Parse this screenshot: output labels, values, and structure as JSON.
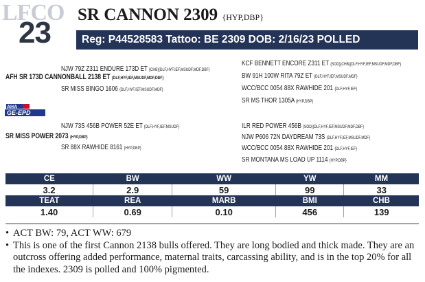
{
  "lot": {
    "number": "23",
    "logo_text": "LFCO"
  },
  "animal": {
    "name": "SR CANNON 2309",
    "tags": "{HYP,DBP}",
    "reg_line": "Reg: P44528583   Tattoo: BE 2309   DOB: 2/16/23   POLLED"
  },
  "pedigree": {
    "sire_sire": {
      "name": "NJW 79Z Z311 ENDURE 173D ET",
      "tags": "{CHB}{DLF,HYF,IEF,MSUDF,MDF,DBF}"
    },
    "sire": {
      "name": "AFH SR 173D CANNONBALL 2138 ET",
      "tags": "{DLF,HYF,IEF,MSUDF,MDF,DBF}"
    },
    "sire_dam": {
      "name": "SR MISS BINGO 1606",
      "tags": "{DLF,HYF,IEF,MSUDF,MDF}"
    },
    "sss": {
      "name": "KCF BENNETT ENCORE Z311 ET",
      "tags": "{SOD}{CHB}{DLF,HYF,IEF,MSUDF,MDF,DBF}"
    },
    "ssd": {
      "name": "BW 91H 100W RITA 79Z ET",
      "tags": "{DLF,HYF,IEF,MSUDF,MDF}"
    },
    "sds": {
      "name": "WCC/BCC 0054 88X RAWHIDE 201",
      "tags": "{DLF,HYF,IEF}"
    },
    "sdd": {
      "name": "SR MS THOR 1305A",
      "tags": "{HYP,DBP}"
    },
    "dam_sire": {
      "name": "NJW 73S 456B POWER 52E ET",
      "tags": "{DLF,HYF,IEF,MSUDF}"
    },
    "dam": {
      "name": "SR MISS POWER 2073",
      "tags": "{HYP,DBP}"
    },
    "dam_dam": {
      "name": "SR 88X RAWHIDE 8161",
      "tags": "{HYP,DBP}"
    },
    "dss": {
      "name": "ILR RED POWER 456B",
      "tags": "{SOD}{DLF,HYF,IEF,MSUDF,MDF,DBF}"
    },
    "dsd": {
      "name": "NJW P606 72N DAYDREAM 73S",
      "tags": "{DLF,HYF,IEF,MSUDF,MDF}"
    },
    "dds": {
      "name": "WCC/BCC 0054 88X RAWHIDE 201",
      "tags": "{DLF,HYF,IEF}"
    },
    "ddd": {
      "name": "SR MONTANA MS LOAD UP 1114",
      "tags": "{HYP,DBP}"
    }
  },
  "badge": {
    "line1": "AHA",
    "line2": "GE-EPD",
    "primary": "#1f3a8c",
    "accent": "#c8102e"
  },
  "epd_table": {
    "row1_headers": [
      "CE",
      "BW",
      "WW",
      "YW",
      "MM"
    ],
    "row1_values": [
      "3.2",
      "2.9",
      "59",
      "99",
      "33"
    ],
    "row2_headers": [
      "TEAT",
      "REA",
      "MARB",
      "BMI",
      "CHB"
    ],
    "row2_values": [
      "1.40",
      "0.69",
      "0.10",
      "456",
      "139"
    ]
  },
  "notes": [
    "ACT BW: 79, ACT WW: 679",
    "This is one of the first Cannon 2138 bulls offered. They are long bodied and thick made. They are an outcross offering added performance, maternal traits, carcassing ability, and is in the top 20% for all the indexes. 2309 is polled and 100% pigmented."
  ],
  "colors": {
    "navy": "#243457",
    "lot_number": "#2e3545",
    "logo_gray": "#c9ccd4"
  }
}
